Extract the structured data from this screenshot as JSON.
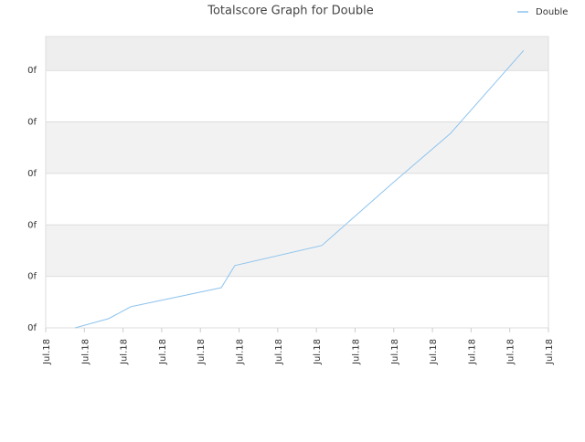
{
  "chart_data": {
    "type": "line",
    "title": "Totalscore Graph for Double",
    "series": [
      {
        "name": "Double",
        "color": "#8ec4ee",
        "x": [
          0.76,
          1.63,
          2.2,
          4.54,
          4.89,
          7.14,
          8.98,
          10.47,
          12.36
        ],
        "values": [
          0,
          0.18,
          0.41,
          0.78,
          1.21,
          1.6,
          2.82,
          3.78,
          5.39
        ]
      }
    ],
    "xlim": [
      0,
      13
    ],
    "xticks": [
      {
        "value": 0,
        "label": "Jul.18"
      },
      {
        "value": 1,
        "label": "Jul.18"
      },
      {
        "value": 2,
        "label": "Jul.18"
      },
      {
        "value": 3,
        "label": "Jul.18"
      },
      {
        "value": 4,
        "label": "Jul.18"
      },
      {
        "value": 5,
        "label": "Jul.18"
      },
      {
        "value": 6,
        "label": "Jul.18"
      },
      {
        "value": 7,
        "label": "Jul.18"
      },
      {
        "value": 8,
        "label": "Jul.18"
      },
      {
        "value": 9,
        "label": "Jul.18"
      },
      {
        "value": 10,
        "label": "Jul.18"
      },
      {
        "value": 11,
        "label": "Jul.18"
      },
      {
        "value": 12,
        "label": "Jul.18"
      },
      {
        "value": 13,
        "label": "Jul.18"
      }
    ],
    "ylim": [
      0,
      5.66
    ],
    "yticks": [
      {
        "value": 0,
        "label": "0f"
      },
      {
        "value": 1,
        "label": "0f"
      },
      {
        "value": 2,
        "label": "0f"
      },
      {
        "value": 3,
        "label": "0f"
      },
      {
        "value": 4,
        "label": "0f"
      },
      {
        "value": 5,
        "label": "0f"
      }
    ],
    "grid": true,
    "legend": "top-right"
  }
}
